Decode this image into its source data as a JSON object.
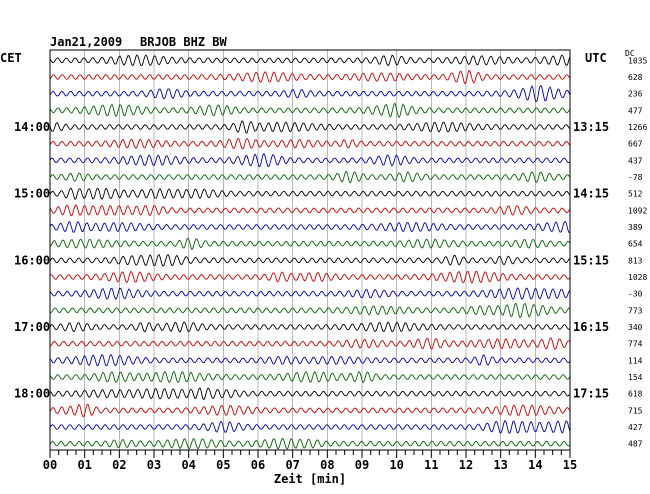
{
  "header": {
    "date": "Jan21,2009",
    "station": "BRJOB BHZ BW",
    "left_zone": "CET",
    "right_zone": "UTC",
    "right_unit": "DC"
  },
  "colors": {
    "trace_cycle": [
      "#000000",
      "#cc0000",
      "#0000aa",
      "#006600"
    ],
    "grid": "#888888",
    "frame": "#000000"
  },
  "chart_data": {
    "type": "line",
    "title": "Jan21,2009   BRJOB BHZ BW",
    "xlabel": "Zeit [min]",
    "ylabel": "",
    "xlim": [
      0,
      15
    ],
    "x_ticks": [
      "00",
      "01",
      "02",
      "03",
      "04",
      "05",
      "06",
      "07",
      "08",
      "09",
      "10",
      "11",
      "12",
      "13",
      "14",
      "15"
    ],
    "trace_count": 24,
    "minutes_per_trace": 15,
    "grid": true,
    "left_hour_labels": [
      "14:00",
      "15:00",
      "16:00",
      "17:00",
      "18:00"
    ],
    "right_hour_labels": [
      "13:15",
      "14:15",
      "15:15",
      "16:15",
      "17:15"
    ],
    "hour_label_trace_index": [
      4,
      8,
      12,
      16,
      20
    ],
    "dc_offsets": [
      1035,
      628,
      236,
      477,
      1266,
      667,
      437,
      -78,
      512,
      1092,
      389,
      654,
      813,
      1028,
      -30,
      773,
      340,
      774,
      114,
      154,
      618,
      715,
      427,
      487
    ],
    "series_note": ""
  }
}
